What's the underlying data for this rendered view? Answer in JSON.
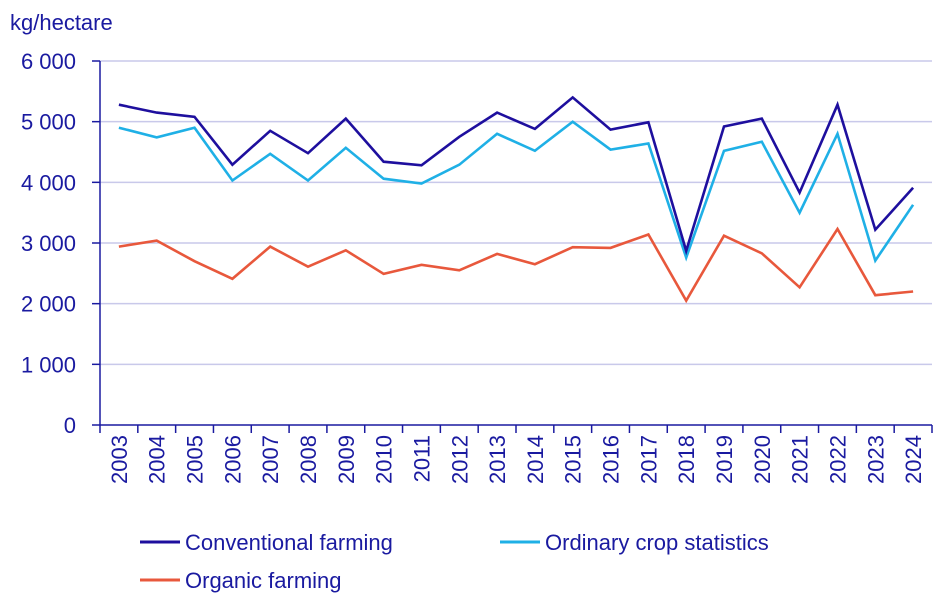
{
  "chart_data": {
    "type": "line",
    "ylabel": "kg/hectare",
    "ylim": [
      0,
      6000
    ],
    "yticks": [
      0,
      1000,
      2000,
      3000,
      4000,
      5000,
      6000
    ],
    "ytick_labels": [
      "0",
      "1 000",
      "2 000",
      "3 000",
      "4 000",
      "5 000",
      "6 000"
    ],
    "categories": [
      "2003",
      "2004",
      "2005",
      "2006",
      "2007",
      "2008",
      "2009",
      "2010",
      "2011",
      "2012",
      "2013",
      "2014",
      "2015",
      "2016",
      "2017",
      "2018",
      "2019",
      "2020",
      "2021",
      "2022",
      "2023",
      "2024"
    ],
    "grid": true,
    "legend_position": "bottom",
    "series": [
      {
        "name": "Conventional farming",
        "color": "#1e0f9e",
        "values": [
          5280,
          5150,
          5080,
          4290,
          4850,
          4480,
          5050,
          4340,
          4280,
          4750,
          5150,
          4880,
          5400,
          4870,
          4990,
          2870,
          4920,
          5050,
          3830,
          5280,
          3220,
          3910
        ]
      },
      {
        "name": "Ordinary crop statistics",
        "color": "#1fb0e6",
        "values": [
          4900,
          4740,
          4900,
          4030,
          4470,
          4030,
          4570,
          4060,
          3980,
          4290,
          4800,
          4520,
          5000,
          4540,
          4640,
          2760,
          4520,
          4670,
          3500,
          4800,
          2710,
          3630
        ]
      },
      {
        "name": "Organic farming",
        "color": "#e8583c",
        "values": [
          2940,
          3040,
          2700,
          2410,
          2940,
          2610,
          2880,
          2490,
          2640,
          2550,
          2820,
          2650,
          2930,
          2920,
          3140,
          2050,
          3120,
          2830,
          2270,
          3230,
          2140,
          2200
        ]
      }
    ]
  }
}
